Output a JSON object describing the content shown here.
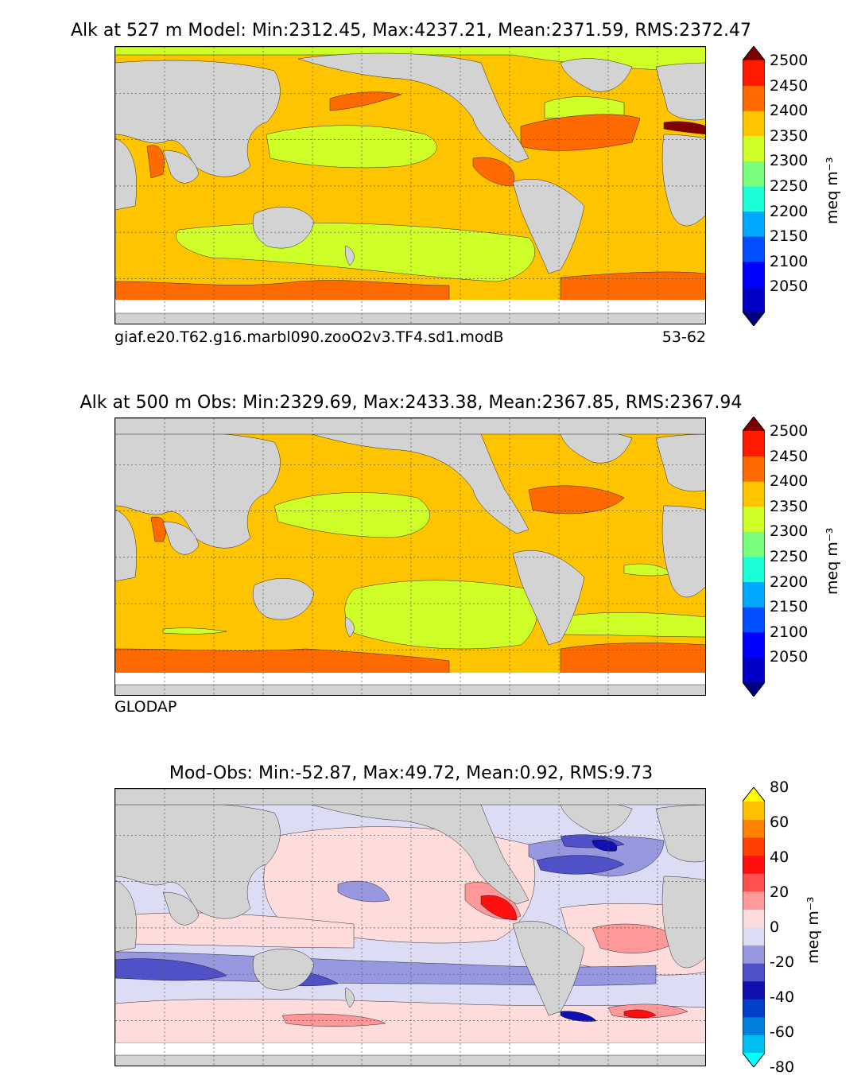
{
  "panels": [
    {
      "title": "Alk at 527 m Model: Min:2312.45, Max:4237.21, Mean:2371.59, RMS:2372.47",
      "footer_left": "giaf.e20.T62.g16.marbl090.zooO2v3.TF4.sd1.modB",
      "footer_right": "53-62",
      "colorbar": {
        "units": "meq m⁻³",
        "ticks": [
          "2050",
          "2100",
          "2150",
          "2200",
          "2250",
          "2300",
          "2350",
          "2400",
          "2450",
          "2500"
        ],
        "colors": [
          "#00007f",
          "#0000c8",
          "#0000ff",
          "#0050ff",
          "#00a8ff",
          "#1affd8",
          "#7aff7d",
          "#ceff29",
          "#ffc400",
          "#ff6a00",
          "#ff1a00",
          "#7f0000"
        ]
      }
    },
    {
      "title": "Alk at 500 m Obs: Min:2329.69, Max:2433.38, Mean:2367.85, RMS:2367.94",
      "footer_left": "GLODAP",
      "footer_right": "",
      "colorbar": {
        "units": "meq m⁻³",
        "ticks": [
          "2050",
          "2100",
          "2150",
          "2200",
          "2250",
          "2300",
          "2350",
          "2400",
          "2450",
          "2500"
        ],
        "colors": [
          "#00007f",
          "#0000c8",
          "#0000ff",
          "#0050ff",
          "#00a8ff",
          "#1affd8",
          "#7aff7d",
          "#ceff29",
          "#ffc400",
          "#ff6a00",
          "#ff1a00",
          "#7f0000"
        ]
      }
    },
    {
      "title": "Mod-Obs: Min:-52.87, Max:49.72, Mean:0.92, RMS:9.73",
      "footer_left": "",
      "footer_right": "",
      "colorbar": {
        "units": "meq m⁻³",
        "ticks": [
          "-80",
          "-60",
          "-40",
          "-20",
          "0",
          "20",
          "40",
          "60",
          "80"
        ],
        "colors": [
          "#00ffff",
          "#00c0ef",
          "#0080df",
          "#0040c8",
          "#1010b0",
          "#5050c8",
          "#9898e0",
          "#dcdcf4",
          "#ffdcdc",
          "#ff9898",
          "#ff5050",
          "#ff1010",
          "#ff4000",
          "#ff8000",
          "#ffc000",
          "#ffff00"
        ]
      }
    }
  ],
  "map_colors": {
    "land": "#d3d3d3",
    "model_base": "#ffc400",
    "model_low": "#ceff29",
    "model_high": "#ff6a00",
    "model_max": "#7f0000",
    "obs_base": "#ffc400",
    "obs_low": "#ceff29",
    "obs_high": "#ff6a00",
    "diff_neutral": "#dcdcf4",
    "diff_pos": "#ffdcdc",
    "diff_pos2": "#ff9898",
    "diff_pos3": "#ff1010",
    "diff_neg": "#9898e0",
    "diff_neg2": "#5050c8",
    "diff_neg3": "#1010b0"
  }
}
